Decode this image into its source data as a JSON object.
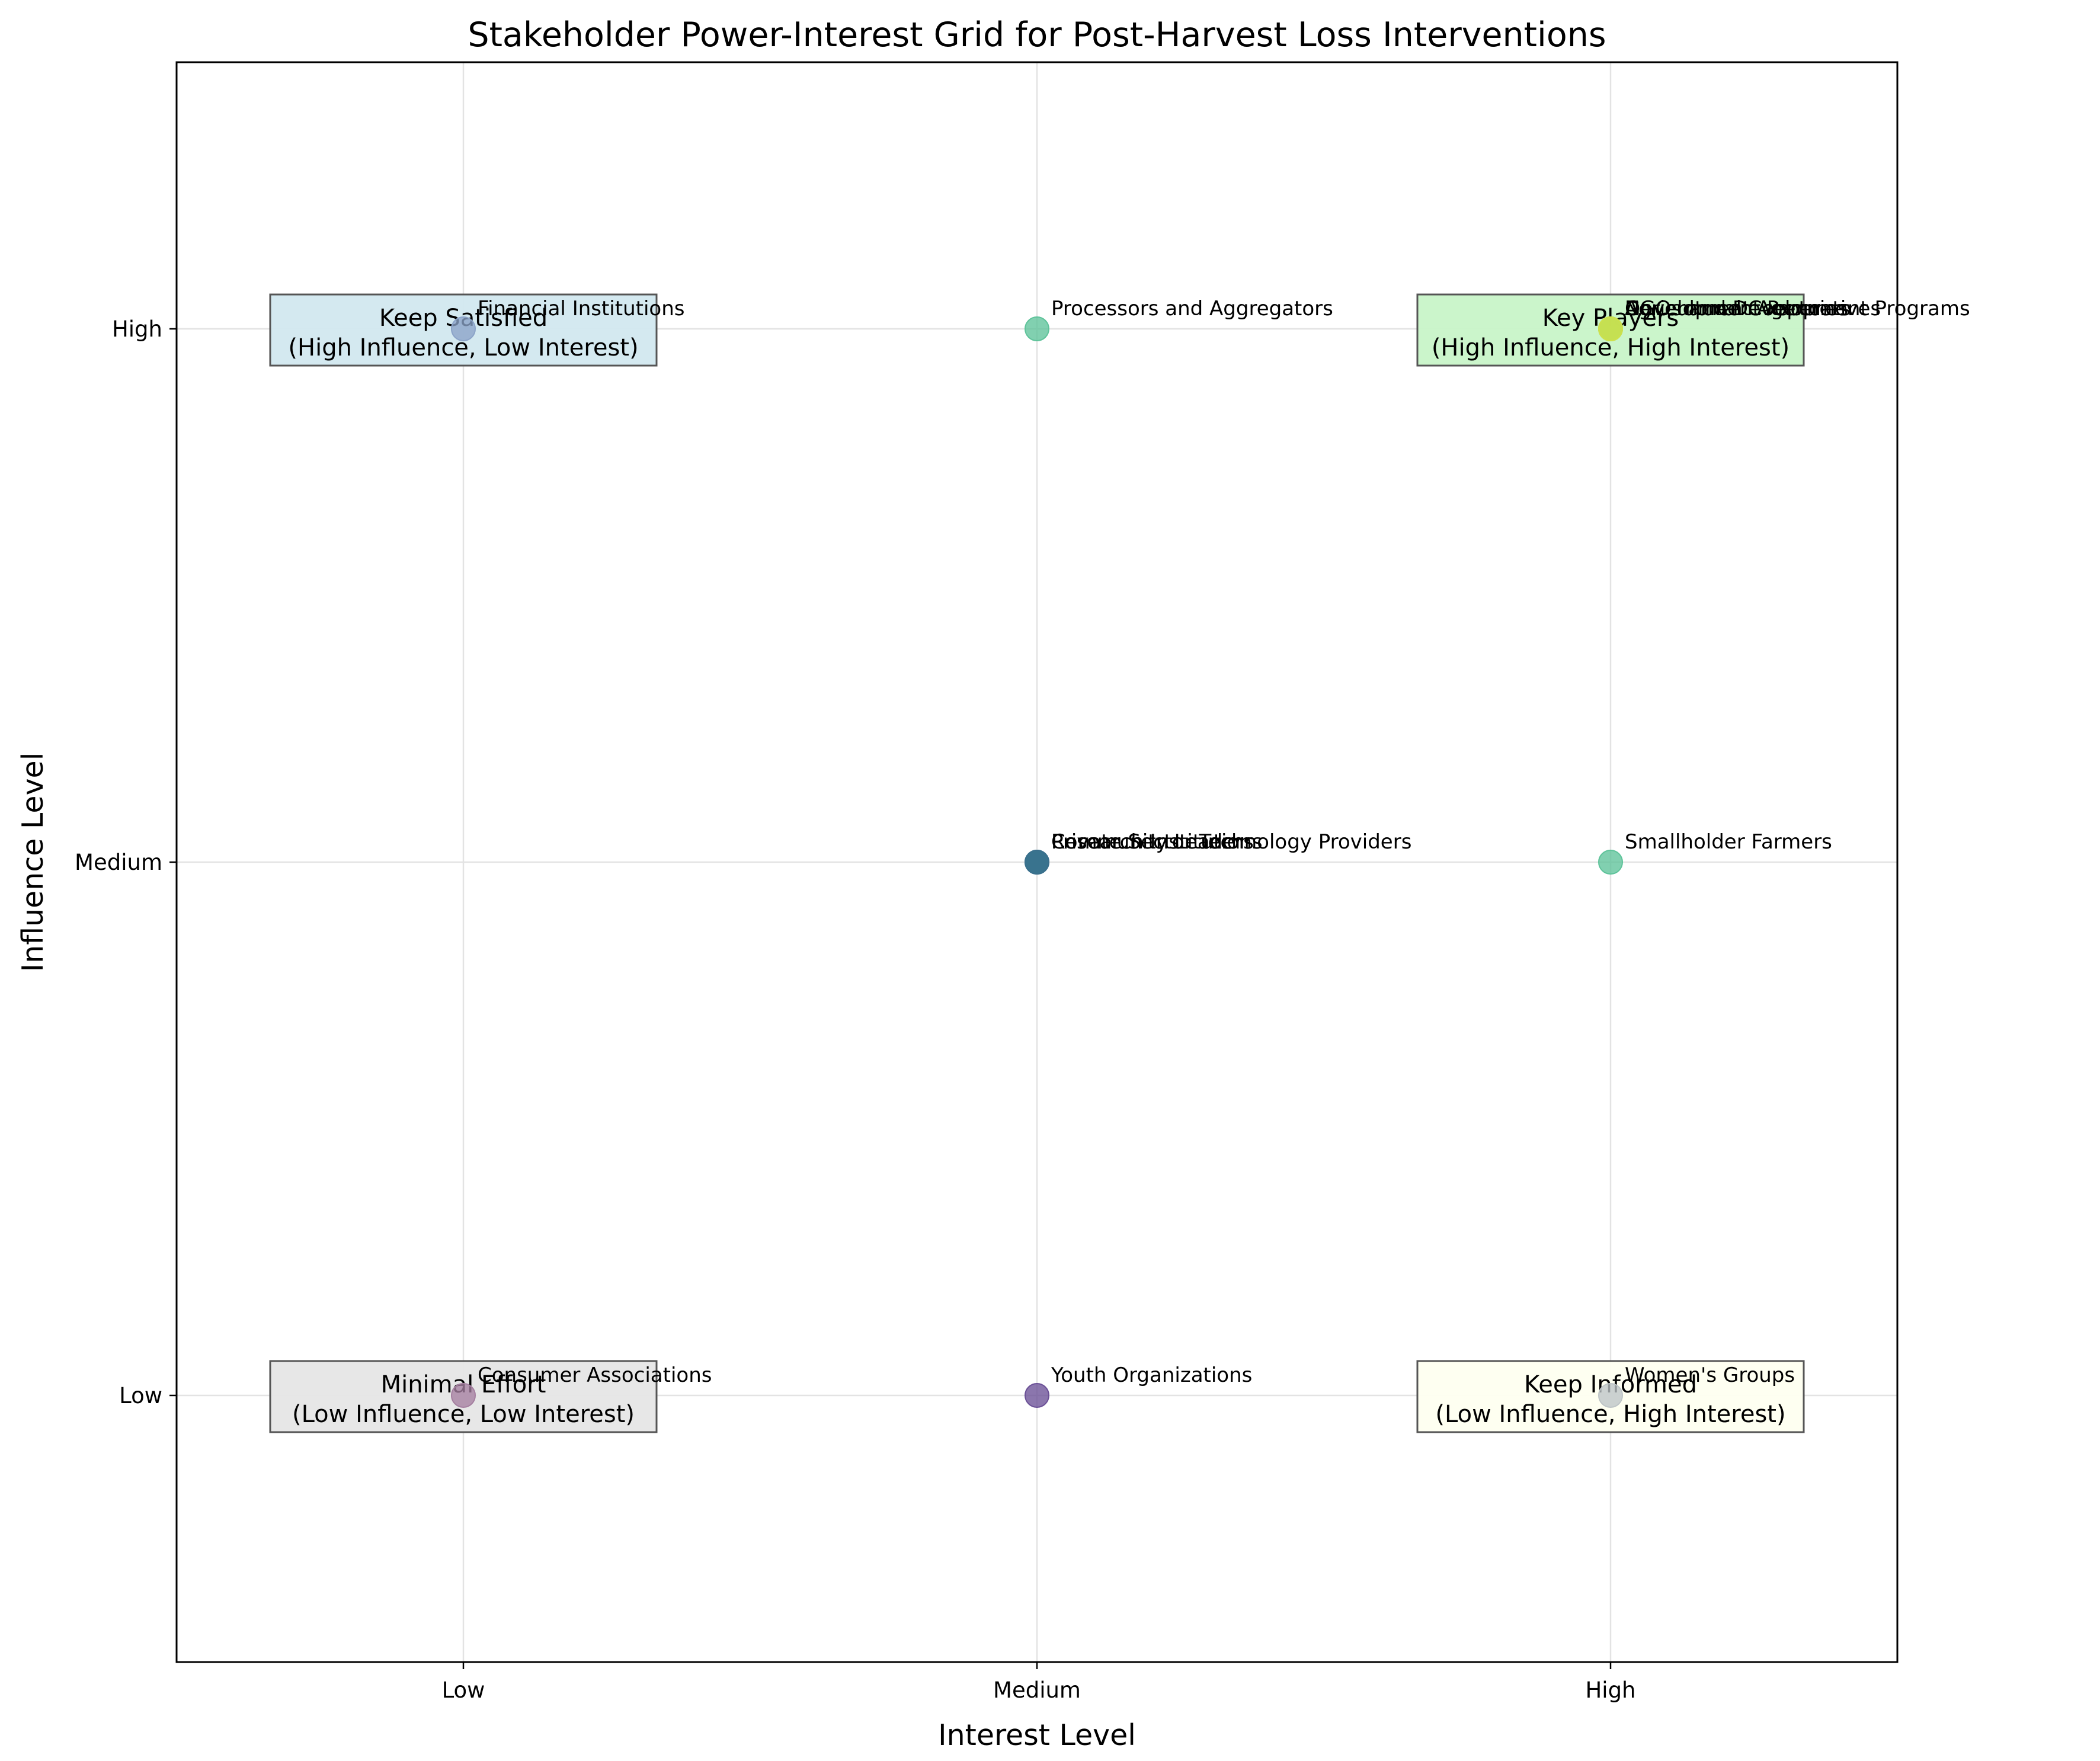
{
  "chart_data": {
    "type": "scatter",
    "title": "Stakeholder Power-Interest Grid for Post-Harvest Loss Interventions",
    "xlabel": "Interest Level",
    "ylabel": "Influence Level",
    "x_ticks": [
      "Low",
      "Medium",
      "High"
    ],
    "y_ticks": [
      "Low",
      "Medium",
      "High"
    ],
    "xlim": [
      -0.5,
      2.5
    ],
    "ylim": [
      -0.5,
      2.5
    ],
    "grid": true,
    "quadrants": [
      {
        "line1": "Keep Satisfied",
        "line2": "(High Influence, Low Interest)",
        "x": 0,
        "y": 2,
        "color": "#d2e8ef"
      },
      {
        "line1": "Key Players",
        "line2": "(High Influence, High Interest)",
        "x": 2,
        "y": 2,
        "color": "#c8f4c8"
      },
      {
        "line1": "Minimal Effort",
        "line2": "(Low Influence, Low Interest)",
        "x": 0,
        "y": 0,
        "color": "#e6e6e6"
      },
      {
        "line1": "Keep Informed",
        "line2": "(Low Influence, High Interest)",
        "x": 2,
        "y": 0,
        "color": "#fefff0"
      }
    ],
    "points": [
      {
        "name": "Financial Institutions",
        "interest": "Low",
        "influence": "High",
        "color": "#8ba3c8"
      },
      {
        "name": "Processors and Aggregators",
        "interest": "Medium",
        "influence": "High",
        "color": "#5ec39a"
      },
      {
        "name": "Development Partners",
        "interest": "High",
        "influence": "High",
        "color": "#a5d96a"
      },
      {
        "name": "NGOs and Development Programs",
        "interest": "High",
        "influence": "High",
        "color": "#b9de6a"
      },
      {
        "name": "Government Agencies",
        "interest": "High",
        "influence": "High",
        "color": "#9ad86c"
      },
      {
        "name": "Agricultural Cooperatives",
        "interest": "High",
        "influence": "High",
        "color": "#cfe14a"
      },
      {
        "name": "Private Sector Technology Providers",
        "interest": "Medium",
        "influence": "Medium",
        "color": "#2b6e8f"
      },
      {
        "name": "Research Institutions",
        "interest": "Medium",
        "influence": "Medium",
        "color": "#2f7b91"
      },
      {
        "name": "Community Leaders",
        "interest": "Medium",
        "influence": "Medium",
        "color": "#3a6f8c"
      },
      {
        "name": "Smallholder Farmers",
        "interest": "High",
        "influence": "Medium",
        "color": "#5ec39a"
      },
      {
        "name": "Consumer Associations",
        "interest": "Low",
        "influence": "Low",
        "color": "#a57fa0"
      },
      {
        "name": "Youth Organizations",
        "interest": "Medium",
        "influence": "Low",
        "color": "#6a4f96"
      },
      {
        "name": "Women's Groups",
        "interest": "High",
        "influence": "Low",
        "color": "#bdc4c6"
      }
    ]
  }
}
